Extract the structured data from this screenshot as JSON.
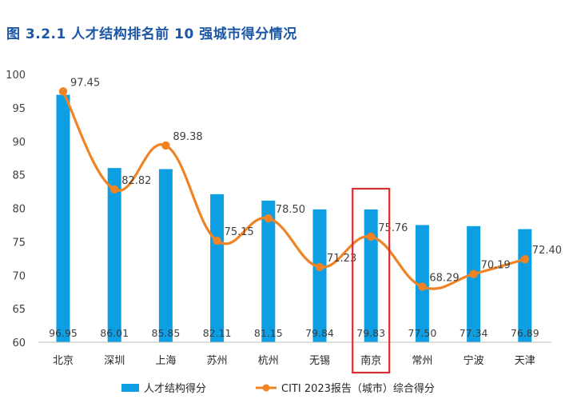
{
  "chart_data": {
    "title": "图 3.2.1 人才结构排名前 10 强城市得分情况",
    "type": "bar+line",
    "categories": [
      "北京",
      "深圳",
      "上海",
      "苏州",
      "杭州",
      "无锡",
      "南京",
      "常州",
      "宁波",
      "天津"
    ],
    "series": [
      {
        "name": "人才结构得分",
        "type": "bar",
        "color": "#0d9ee3",
        "values": [
          96.95,
          86.01,
          85.85,
          82.11,
          81.15,
          79.84,
          79.83,
          77.5,
          77.34,
          76.89
        ],
        "labels": [
          "96.95",
          "86.01",
          "85.85",
          "82.11",
          "81.15",
          "79.84",
          "79.83",
          "77.50",
          "77.34",
          "76.89"
        ]
      },
      {
        "name": "CITI 2023报告（城市）综合得分",
        "type": "line",
        "color": "#f08424",
        "smooth": true,
        "values": [
          97.45,
          82.82,
          89.38,
          75.15,
          78.5,
          71.23,
          75.76,
          68.29,
          70.19,
          72.4
        ],
        "labels": [
          "97.45",
          "82.82",
          "89.38",
          "75.15",
          "78.50",
          "71.23",
          "75.76",
          "68.29",
          "70.19",
          "72.40"
        ]
      }
    ],
    "y_ticks": [
      "60",
      "65",
      "70",
      "75",
      "80",
      "85",
      "90",
      "95",
      "100"
    ],
    "ylim": [
      60,
      100
    ],
    "grid": false,
    "legend": "bottom",
    "highlight": {
      "category": "南京",
      "color": "#d62f2f"
    },
    "axis_color": "#bfbfbf",
    "text_color": "#404040"
  }
}
